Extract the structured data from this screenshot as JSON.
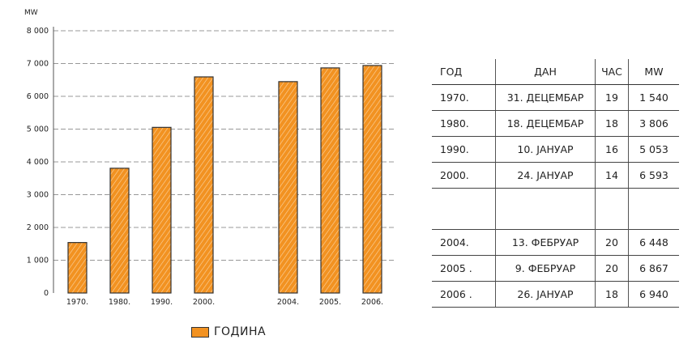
{
  "chart_data": {
    "type": "bar",
    "ylabel": "MW",
    "xlabel": "",
    "title": "",
    "ylim": [
      0,
      8000
    ],
    "yticks": [
      "0",
      "1 000",
      "2 000",
      "3 000",
      "4 000",
      "5 000",
      "6 000",
      "7 000",
      "8 000"
    ],
    "categories": [
      "1970.",
      "1980.",
      "1990.",
      "2000.",
      "2004.",
      "2005.",
      "2006."
    ],
    "values": [
      1540,
      3806,
      5053,
      6593,
      6448,
      6867,
      6940
    ],
    "series": [
      {
        "name": "ГОДИНА",
        "values": [
          1540,
          3806,
          5053,
          6593,
          6448,
          6867,
          6940
        ]
      }
    ],
    "grid": true,
    "legend_position": "bottom",
    "bar_color": "#f29221"
  },
  "legend_label": "ГОДИНА",
  "table": {
    "headers": [
      "ГОД",
      "ДАН",
      "ЧАС",
      "MW"
    ],
    "rows_top": [
      [
        "1970.",
        "31. ДЕЦЕМБАР",
        "19",
        "1 540"
      ],
      [
        "1980.",
        "18. ДЕЦЕМБАР",
        "18",
        "3 806"
      ],
      [
        "1990.",
        "10. ЈАНУАР",
        "16",
        "5 053"
      ],
      [
        "2000.",
        "24. ЈАНУАР",
        "14",
        "6 593"
      ]
    ],
    "rows_bottom": [
      [
        "2004.",
        "13. ФЕБРУАР",
        "20",
        "6 448"
      ],
      [
        "2005 .",
        "9. ФЕБРУАР",
        "20",
        "6 867"
      ],
      [
        "2006 .",
        "26. ЈАНУАР",
        "18",
        "6 940"
      ]
    ]
  }
}
